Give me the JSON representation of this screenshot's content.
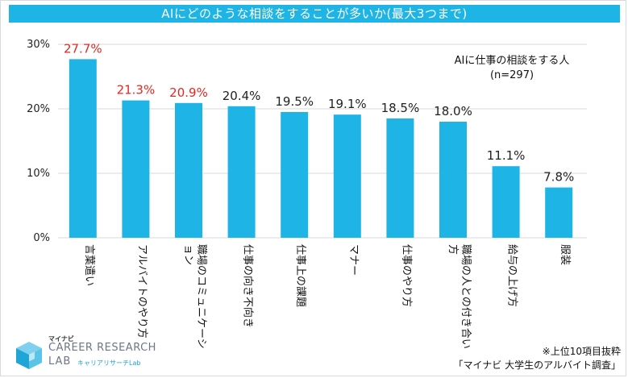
{
  "chart_data": {
    "type": "bar",
    "title": "AIにどのような相談をすることが多いか(最大3つまで)",
    "categories": [
      "言葉遣い",
      "アルバイトのやり方",
      "職場のコミュニケーション",
      "仕事の向き不向き",
      "仕事上の課題",
      "マナー",
      "仕事のやり方",
      "職場の人との付き合い方",
      "給与の上げ方",
      "服装"
    ],
    "values": [
      27.7,
      21.3,
      20.9,
      20.4,
      19.5,
      19.1,
      18.5,
      18.0,
      11.1,
      7.8
    ],
    "value_labels": [
      "27.7%",
      "21.3%",
      "20.9%",
      "20.4%",
      "19.5%",
      "19.1%",
      "18.5%",
      "18.0%",
      "11.1%",
      "7.8%"
    ],
    "highlight_top": 3,
    "yticks": [
      "0%",
      "10%",
      "20%",
      "30%"
    ],
    "ylim": [
      0,
      30
    ],
    "grid": true,
    "annotation": [
      "AIに仕事の相談をする人",
      "(n=297)"
    ]
  },
  "colors": {
    "bar": "#1fb4e6",
    "title_bg": "#1fb4e6",
    "highlight_label": "#e8251f",
    "normal_label": "#222222",
    "grid": "#d9d9d9"
  },
  "footer": {
    "brand_small": "マイナビ",
    "brand_main": "CAREER RESEARCH",
    "brand_lab": "LAB",
    "brand_sub": "キャリアリサーチLab",
    "note_line1": "※上位10項目抜粋",
    "note_line2": "「マイナビ 大学生のアルバイト調査」"
  }
}
